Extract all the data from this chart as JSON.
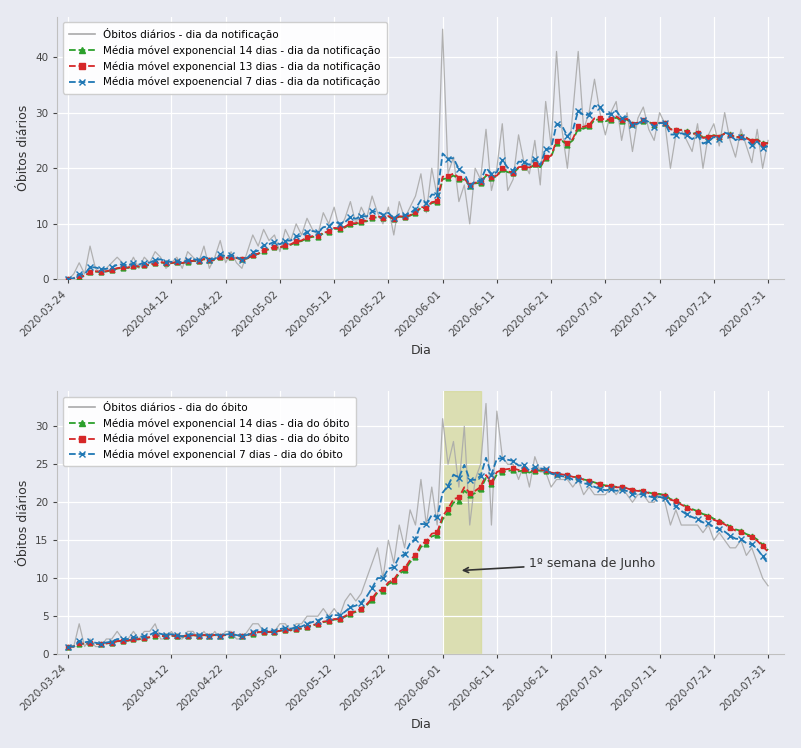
{
  "xlabel": "Dia",
  "ylabel": "Óbitos diários",
  "bg_color": "#e8eaf2",
  "dates_str": [
    "2020-03-24",
    "2020-03-25",
    "2020-03-26",
    "2020-03-27",
    "2020-03-28",
    "2020-03-29",
    "2020-03-30",
    "2020-03-31",
    "2020-04-01",
    "2020-04-02",
    "2020-04-03",
    "2020-04-04",
    "2020-04-05",
    "2020-04-06",
    "2020-04-07",
    "2020-04-08",
    "2020-04-09",
    "2020-04-10",
    "2020-04-11",
    "2020-04-12",
    "2020-04-13",
    "2020-04-14",
    "2020-04-15",
    "2020-04-16",
    "2020-04-17",
    "2020-04-18",
    "2020-04-19",
    "2020-04-20",
    "2020-04-21",
    "2020-04-22",
    "2020-04-23",
    "2020-04-24",
    "2020-04-25",
    "2020-04-26",
    "2020-04-27",
    "2020-04-28",
    "2020-04-29",
    "2020-04-30",
    "2020-05-01",
    "2020-05-02",
    "2020-05-03",
    "2020-05-04",
    "2020-05-05",
    "2020-05-06",
    "2020-05-07",
    "2020-05-08",
    "2020-05-09",
    "2020-05-10",
    "2020-05-11",
    "2020-05-12",
    "2020-05-13",
    "2020-05-14",
    "2020-05-15",
    "2020-05-16",
    "2020-05-17",
    "2020-05-18",
    "2020-05-19",
    "2020-05-20",
    "2020-05-21",
    "2020-05-22",
    "2020-05-23",
    "2020-05-24",
    "2020-05-25",
    "2020-05-26",
    "2020-05-27",
    "2020-05-28",
    "2020-05-29",
    "2020-05-30",
    "2020-05-31",
    "2020-06-01",
    "2020-06-02",
    "2020-06-03",
    "2020-06-04",
    "2020-06-05",
    "2020-06-06",
    "2020-06-07",
    "2020-06-08",
    "2020-06-09",
    "2020-06-10",
    "2020-06-11",
    "2020-06-12",
    "2020-06-13",
    "2020-06-14",
    "2020-06-15",
    "2020-06-16",
    "2020-06-17",
    "2020-06-18",
    "2020-06-19",
    "2020-06-20",
    "2020-06-21",
    "2020-06-22",
    "2020-06-23",
    "2020-06-24",
    "2020-06-25",
    "2020-06-26",
    "2020-06-27",
    "2020-06-28",
    "2020-06-29",
    "2020-06-30",
    "2020-07-01",
    "2020-07-02",
    "2020-07-03",
    "2020-07-04",
    "2020-07-05",
    "2020-07-06",
    "2020-07-07",
    "2020-07-08",
    "2020-07-09",
    "2020-07-10",
    "2020-07-11",
    "2020-07-12",
    "2020-07-13",
    "2020-07-14",
    "2020-07-15",
    "2020-07-16",
    "2020-07-17",
    "2020-07-18",
    "2020-07-19",
    "2020-07-20",
    "2020-07-21",
    "2020-07-22",
    "2020-07-23",
    "2020-07-24",
    "2020-07-25",
    "2020-07-26",
    "2020-07-27",
    "2020-07-28",
    "2020-07-29",
    "2020-07-30",
    "2020-07-31"
  ],
  "notif_raw": [
    0,
    1,
    3,
    1,
    6,
    2,
    1,
    2,
    3,
    4,
    3,
    2,
    4,
    2,
    4,
    3,
    5,
    4,
    2,
    3,
    4,
    2,
    5,
    4,
    3,
    6,
    2,
    4,
    7,
    3,
    5,
    3,
    2,
    5,
    8,
    6,
    9,
    7,
    8,
    5,
    9,
    7,
    10,
    8,
    11,
    9,
    8,
    12,
    10,
    13,
    9,
    11,
    14,
    10,
    13,
    11,
    15,
    12,
    10,
    13,
    8,
    14,
    11,
    13,
    15,
    19,
    12,
    20,
    15,
    45,
    19,
    22,
    14,
    17,
    10,
    20,
    18,
    27,
    16,
    20,
    28,
    16,
    18,
    26,
    21,
    19,
    25,
    17,
    32,
    24,
    41,
    27,
    20,
    30,
    41,
    27,
    30,
    36,
    30,
    26,
    30,
    32,
    25,
    30,
    23,
    29,
    31,
    27,
    25,
    30,
    28,
    20,
    26,
    27,
    25,
    23,
    28,
    20,
    26,
    28,
    24,
    30,
    25,
    22,
    27,
    24,
    21,
    27,
    20,
    25
  ],
  "obito_raw": [
    1,
    1,
    4,
    1,
    2,
    1,
    1,
    2,
    2,
    3,
    2,
    2,
    3,
    2,
    3,
    3,
    4,
    2,
    2,
    3,
    2,
    2,
    3,
    3,
    2,
    3,
    2,
    3,
    2,
    3,
    3,
    2,
    2,
    3,
    4,
    4,
    3,
    3,
    3,
    4,
    4,
    3,
    4,
    4,
    5,
    5,
    5,
    6,
    5,
    6,
    5,
    7,
    8,
    7,
    8,
    10,
    12,
    14,
    10,
    15,
    12,
    17,
    14,
    19,
    17,
    23,
    17,
    22,
    17,
    31,
    25,
    28,
    22,
    30,
    17,
    23,
    25,
    33,
    17,
    32,
    26,
    25,
    25,
    23,
    25,
    22,
    26,
    24,
    24,
    22,
    23,
    23,
    23,
    22,
    23,
    21,
    22,
    21,
    21,
    21,
    22,
    21,
    22,
    21,
    20,
    21,
    21,
    20,
    20,
    21,
    20,
    17,
    19,
    17,
    17,
    17,
    17,
    16,
    17,
    15,
    16,
    15,
    14,
    14,
    15,
    13,
    14,
    12,
    10,
    9
  ],
  "highlight_start": "2020-06-01",
  "highlight_end": "2020-06-08",
  "legend1": [
    "Óbitos diários - dia da notificação",
    "Média móvel exponencial 14 dias - dia da notificação",
    "Média móvel exponencial 13 dias - dia da notificação",
    "Média móvel expoenencial 7 dias - dia da notificação"
  ],
  "legend2": [
    "Óbitos diários - dia do óbito",
    "Média móvel exponencial 14 dias - dia do óbito",
    "Média móvel exponencial 13 dias - dia do óbito",
    "Média móvel exponencial 7 dias - dia do óbito"
  ],
  "annotation_text": "1º semana de Junho",
  "gray_color": "#aaaaaa",
  "green_color": "#2ca02c",
  "red_color": "#d62728",
  "blue_color": "#1f77b4",
  "highlight_color": "#d4d990",
  "tick_dates": [
    "2020-03-24",
    "2020-04-12",
    "2020-04-22",
    "2020-05-02",
    "2020-05-12",
    "2020-05-22",
    "2020-06-01",
    "2020-06-11",
    "2020-06-21",
    "2020-07-01",
    "2020-07-11",
    "2020-07-21",
    "2020-07-31"
  ]
}
